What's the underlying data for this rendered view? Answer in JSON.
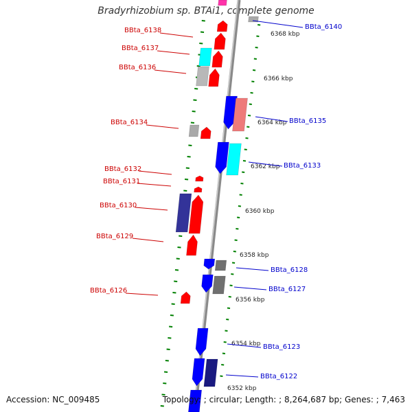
{
  "title": "Bradyrhizobium sp. BTAi1, complete genome",
  "footer": {
    "accession_label": "Accession",
    "accession": "NC_009485",
    "topology_label": "Topology",
    "topology": "circular",
    "length_label": "Length",
    "length": "8,264,687 bp",
    "genes_label": "Genes",
    "genes": "7,463"
  },
  "colors": {
    "red": "#ff0000",
    "blue": "#0000ff",
    "cyan": "#00ffff",
    "gray": "#a9a9a9",
    "pink": "#ee7a7a",
    "dark_blue": "#333399",
    "dark_gray": "#707070",
    "tick_green": "#008000",
    "left_label": "#cc0000",
    "right_label": "#0000cc"
  },
  "scale_labels": [
    "6368 kbp",
    "6366 kbp",
    "6364 kbp",
    "6362 kbp",
    "6360 kbp",
    "6358 kbp",
    "6356 kbp",
    "6354 kbp",
    "6352 kbp"
  ],
  "left_labels": [
    "BBta_6138",
    "BBta_6137",
    "BBta_6136",
    "BBta_6134",
    "BBta_6132",
    "BBta_6131",
    "BBta_6130",
    "BBta_6129",
    "BBta_6126"
  ],
  "right_labels": [
    "BBta_6140",
    "BBta_6135",
    "BBta_6133",
    "BBta_6128",
    "BBta_6127",
    "BBta_6123",
    "BBta_6122"
  ]
}
